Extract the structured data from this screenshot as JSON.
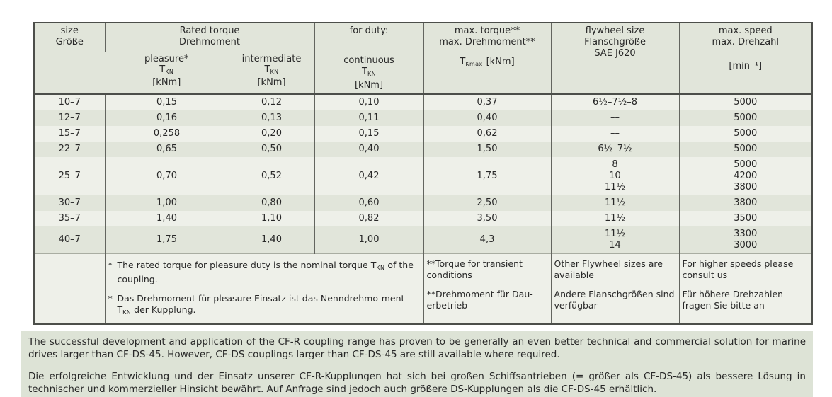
{
  "colors": {
    "band_light": "#eef0e9",
    "band_dark": "#e1e5da",
    "header_bg": "#e1e5da",
    "text_block_bg": "#dde3d6",
    "border_dark": "#4c4e4a",
    "grid_line": "#63655f"
  },
  "table": {
    "header": {
      "size_en": "size",
      "size_de": "Größe",
      "rated_en": "Rated torque",
      "rated_de": "Drehmoment",
      "duty": "for duty:",
      "pleasure_label": "pleasure*",
      "intermediate_label": "intermediate",
      "continuous_label": "continuous",
      "tkn_symbol": "T",
      "tkn_sub": "KN",
      "kNm_unit": "[kNm]",
      "max_torque_en": "max. torque**",
      "max_torque_de": "max. Drehmoment**",
      "tkmax_symbol": "T",
      "tkmax_sub": "Kmax",
      "tkmax_unit": "[kNm]",
      "flywheel_en": "flywheel size",
      "flywheel_de": "Flanschgröße",
      "flywheel_standard": "SAE J620",
      "speed_en": "max. speed",
      "speed_de": "max. Drehzahl",
      "speed_unit": "[min⁻¹]"
    },
    "rows": [
      {
        "size": "10–7",
        "pleasure": "0,15",
        "intermediate": "0,12",
        "continuous": "0,10",
        "max_torque": "0,37",
        "flywheel": "6½–7½–8",
        "speed": "5000"
      },
      {
        "size": "12–7",
        "pleasure": "0,16",
        "intermediate": "0,13",
        "continuous": "0,11",
        "max_torque": "0,40",
        "flywheel": "––",
        "speed": "5000"
      },
      {
        "size": "15–7",
        "pleasure": "0,258",
        "intermediate": "0,20",
        "continuous": "0,15",
        "max_torque": "0,62",
        "flywheel": "––",
        "speed": "5000"
      },
      {
        "size": "22–7",
        "pleasure": "0,65",
        "intermediate": "0,50",
        "continuous": "0,40",
        "max_torque": "1,50",
        "flywheel": "6½–7½",
        "speed": "5000"
      },
      {
        "size": "25–7",
        "pleasure": "0,70",
        "intermediate": "0,52",
        "continuous": "0,42",
        "max_torque": "1,75",
        "flywheel": "8\n10\n11½",
        "speed": "5000\n4200\n3800"
      },
      {
        "size": "30–7",
        "pleasure": "1,00",
        "intermediate": "0,80",
        "continuous": "0,60",
        "max_torque": "2,50",
        "flywheel": "11½",
        "speed": "3800"
      },
      {
        "size": "35–7",
        "pleasure": "1,40",
        "intermediate": "1,10",
        "continuous": "0,82",
        "max_torque": "3,50",
        "flywheel": "11½",
        "speed": "3500"
      },
      {
        "size": "40–7",
        "pleasure": "1,75",
        "intermediate": "1,40",
        "continuous": "1,00",
        "max_torque": "4,3",
        "flywheel": "11½\n14",
        "speed": "3300\n3000"
      }
    ],
    "footnotes": {
      "marker": "*",
      "pleasure_en_pre": "The rated torque for pleasure duty is the nominal torque T",
      "pleasure_sub": "KN",
      "pleasure_en_post": " of the coupling.",
      "pleasure_de_pre": "Das Drehmoment für pleasure Einsatz ist das Nenndrehmo-ment T",
      "pleasure_de_post": " der Kupplung.",
      "torque_note_en": "**Torque for transient conditions",
      "torque_note_de": "**Drehmoment für Dau-erbetrieb",
      "flywheel_note_en": "Other Flywheel sizes are available",
      "flywheel_note_de": "Andere Flanschgrößen sind verfügbar",
      "speed_note_en": "For higher speeds please consult us",
      "speed_note_de": "Für höhere Drehzahlen fragen Sie bitte an"
    }
  },
  "paragraphs": {
    "en": "The successful development and application of the CF-R coupling range has proven to be generally an even better technical and commercial solution for marine drives larger than CF-DS-45. However, CF-DS couplings larger than CF-DS-45 are still available where required.",
    "de": "Die erfolgreiche Entwicklung und der Einsatz unserer CF-R-Kupplungen hat sich bei großen Schiffsantrieben (= größer als CF-DS-45) als bessere Lösung in technischer und kommerzieller Hinsicht bewährt. Auf Anfrage sind jedoch auch größere DS-Kupplungen als die CF-DS-45 erhältlich."
  }
}
